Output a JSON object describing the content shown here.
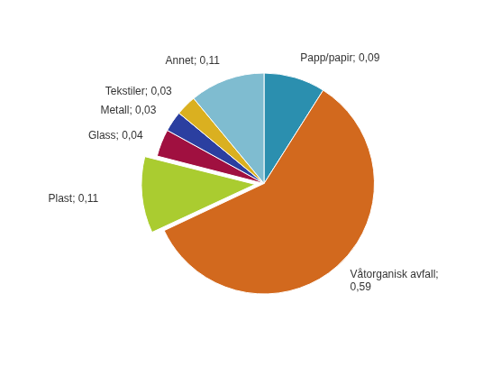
{
  "chart_data": {
    "type": "pie",
    "categories": [
      "Papp/papir; 0,09",
      "Våtorganisk avfall;\n0,59",
      "Plast; 0,11",
      "Glass; 0,04",
      "Metall; 0,03",
      "Tekstiler; 0,03",
      "Annet; 0,11"
    ],
    "values": [
      0.09,
      0.59,
      0.11,
      0.04,
      0.03,
      0.03,
      0.11
    ],
    "colors": [
      "#2B8FAF",
      "#D2691E",
      "#AACC30",
      "#A01040",
      "#2B3FA0",
      "#DAB020",
      "#7FBCD0"
    ]
  }
}
